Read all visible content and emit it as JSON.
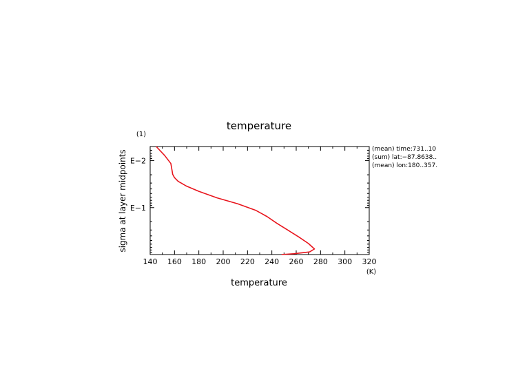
{
  "chart_data": {
    "type": "line",
    "title": "temperature",
    "xlabel": "temperature",
    "ylabel": "sigma at layer midpoints",
    "x_unit": "(K)",
    "y_unit": "(1)",
    "xlim": [
      140,
      320
    ],
    "ylim": [
      0.005,
      1
    ],
    "y_scale": "log",
    "y_inverted": true,
    "x_ticks": [
      140,
      160,
      180,
      200,
      220,
      240,
      260,
      280,
      300,
      320
    ],
    "y_tick_labels": [
      {
        "value": 0.01,
        "label": "E−2"
      },
      {
        "value": 0.1,
        "label": "E−1"
      }
    ],
    "annotations": [
      "(mean) time:731..10",
      "(sum) lat:−87.8638..",
      "(mean) lon:180..357."
    ],
    "series": [
      {
        "color": "#e8141c",
        "points": [
          [
            145,
            0.005
          ],
          [
            152,
            0.0078
          ],
          [
            157,
            0.0115
          ],
          [
            158,
            0.0162
          ],
          [
            158.5,
            0.0195
          ],
          [
            160,
            0.023
          ],
          [
            163,
            0.0275
          ],
          [
            170,
            0.035
          ],
          [
            180,
            0.045
          ],
          [
            195,
            0.062
          ],
          [
            212,
            0.083
          ],
          [
            227,
            0.115
          ],
          [
            236,
            0.155
          ],
          [
            244,
            0.215
          ],
          [
            253,
            0.3
          ],
          [
            262,
            0.42
          ],
          [
            270,
            0.58
          ],
          [
            275,
            0.76
          ],
          [
            271,
            0.88
          ],
          [
            258,
            0.96
          ],
          [
            248,
            1.0
          ]
        ]
      }
    ]
  },
  "colors": {
    "line": "#e8141c",
    "axis": "#000000"
  }
}
